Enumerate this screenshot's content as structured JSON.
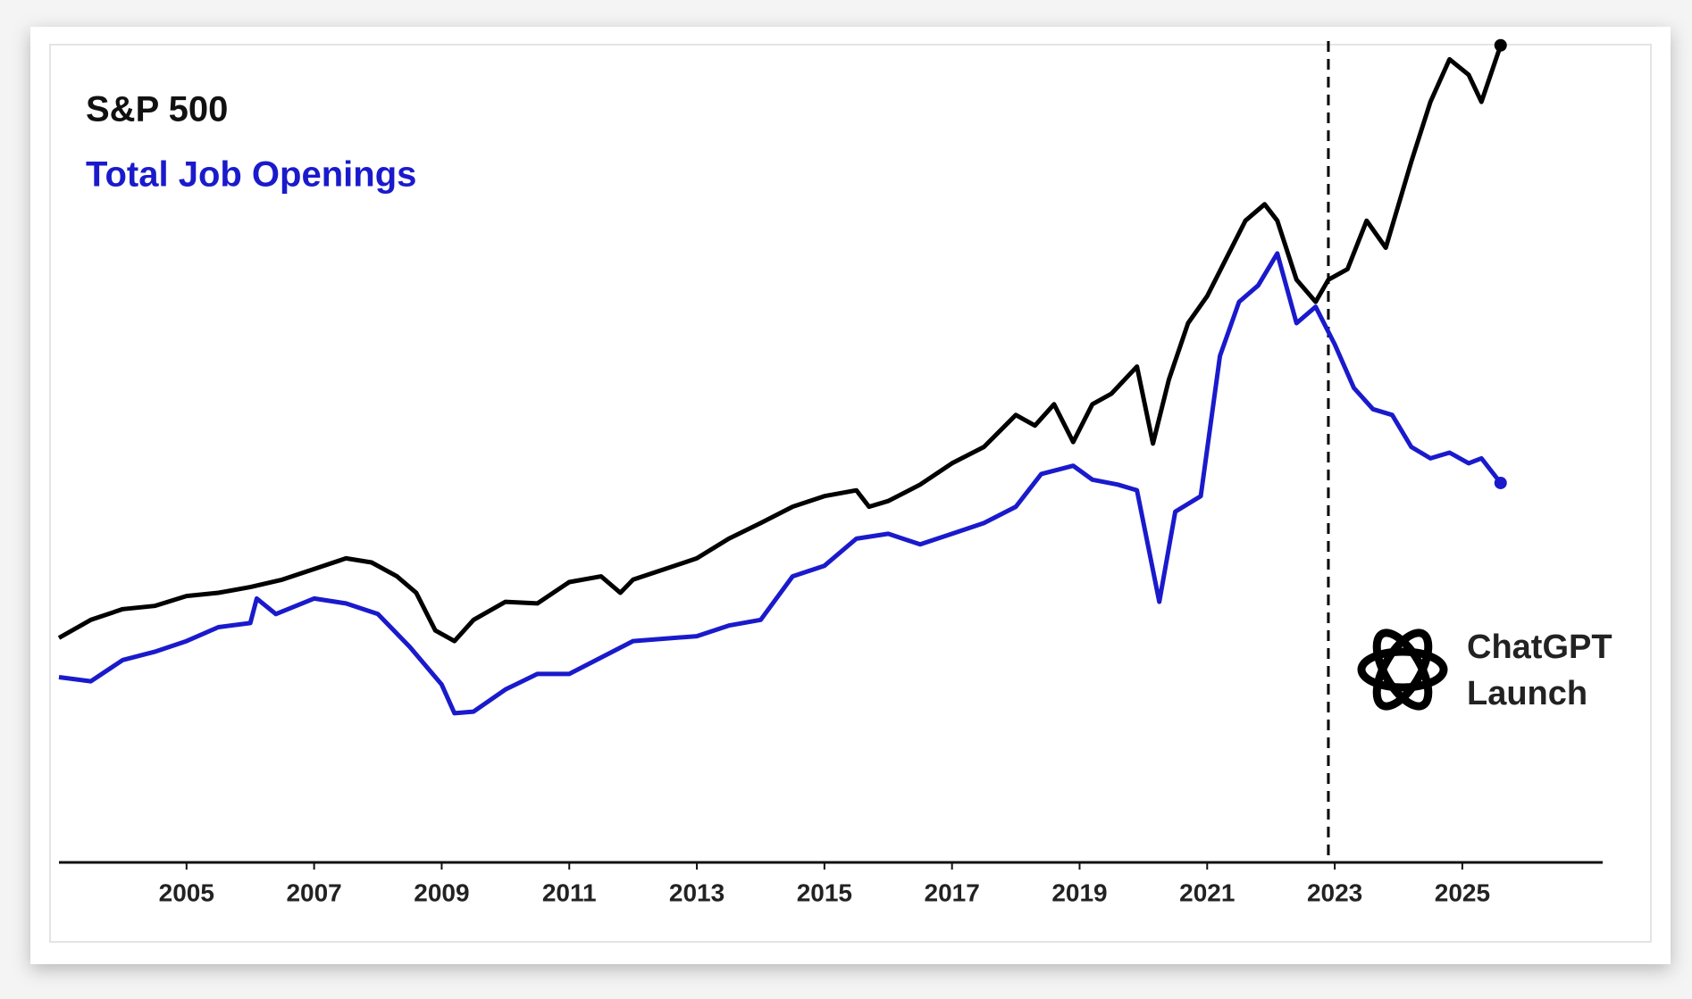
{
  "chart_data": {
    "type": "line",
    "xlim": [
      2003,
      2027.2
    ],
    "xticks": [
      2005,
      2007,
      2009,
      2011,
      2013,
      2015,
      2017,
      2019,
      2021,
      2023,
      2025
    ],
    "ylim": [
      0,
      100
    ],
    "series": [
      {
        "name": "S&P 500",
        "color": "#000000",
        "x": [
          2003.0,
          2003.5,
          2004.0,
          2004.5,
          2005.0,
          2005.5,
          2006.0,
          2006.5,
          2007.0,
          2007.5,
          2007.9,
          2008.3,
          2008.6,
          2008.9,
          2009.2,
          2009.5,
          2010.0,
          2010.5,
          2011.0,
          2011.5,
          2011.8,
          2012.0,
          2012.5,
          2013.0,
          2013.5,
          2014.0,
          2014.5,
          2015.0,
          2015.5,
          2015.7,
          2016.0,
          2016.5,
          2017.0,
          2017.5,
          2018.0,
          2018.3,
          2018.6,
          2018.9,
          2019.2,
          2019.5,
          2019.9,
          2020.15,
          2020.4,
          2020.7,
          2021.0,
          2021.3,
          2021.6,
          2021.9,
          2022.1,
          2022.4,
          2022.7,
          2022.9,
          2023.2,
          2023.5,
          2023.8,
          2024.2,
          2024.5,
          2024.8,
          2025.1,
          2025.3,
          2025.6
        ],
        "values": [
          27.4,
          29.6,
          30.9,
          31.3,
          32.5,
          32.9,
          33.6,
          34.5,
          35.8,
          37.1,
          36.6,
          34.9,
          32.9,
          28.3,
          27.0,
          29.6,
          31.8,
          31.6,
          34.2,
          34.9,
          32.9,
          34.5,
          35.8,
          37.1,
          39.5,
          41.4,
          43.4,
          44.7,
          45.4,
          43.4,
          44.1,
          46.1,
          48.7,
          50.7,
          54.6,
          53.3,
          55.9,
          51.3,
          55.9,
          57.2,
          60.5,
          51.1,
          58.9,
          65.8,
          69.1,
          73.7,
          78.3,
          80.3,
          78.3,
          71.1,
          68.4,
          71.1,
          72.4,
          78.3,
          75.0,
          85.5,
          92.8,
          98.0,
          96.1,
          92.8,
          99.7
        ]
      },
      {
        "name": "Total Job Openings",
        "color": "#1a1acc",
        "x": [
          2003.0,
          2003.5,
          2004.0,
          2004.5,
          2005.0,
          2005.5,
          2006.0,
          2006.1,
          2006.4,
          2007.0,
          2007.5,
          2008.0,
          2008.5,
          2009.0,
          2009.2,
          2009.5,
          2010.0,
          2010.5,
          2011.0,
          2012.0,
          2013.0,
          2013.5,
          2014.0,
          2014.5,
          2015.0,
          2015.5,
          2016.0,
          2016.5,
          2017.0,
          2017.5,
          2018.0,
          2018.4,
          2018.9,
          2019.2,
          2019.6,
          2019.9,
          2020.25,
          2020.5,
          2020.9,
          2021.2,
          2021.5,
          2021.8,
          2022.1,
          2022.4,
          2022.7,
          2023.0,
          2023.3,
          2023.6,
          2023.9,
          2024.2,
          2024.5,
          2024.8,
          2025.1,
          2025.3,
          2025.6
        ],
        "values": [
          22.6,
          22.1,
          24.7,
          25.7,
          27.0,
          28.7,
          29.2,
          32.2,
          30.3,
          32.2,
          31.6,
          30.3,
          26.3,
          21.7,
          18.2,
          18.4,
          21.1,
          23.0,
          23.0,
          27.0,
          27.6,
          28.9,
          29.6,
          34.9,
          36.2,
          39.5,
          40.1,
          38.8,
          40.1,
          41.4,
          43.4,
          47.4,
          48.4,
          46.7,
          46.1,
          45.4,
          31.8,
          42.8,
          44.7,
          61.8,
          68.4,
          70.4,
          74.3,
          65.8,
          67.8,
          63.2,
          57.9,
          55.3,
          54.6,
          50.7,
          49.3,
          50.0,
          48.7,
          49.3,
          46.3
        ]
      }
    ],
    "annotations": [
      {
        "lines": [
          "ChatGPT",
          "Launch"
        ],
        "x": 2022.9
      }
    ]
  }
}
